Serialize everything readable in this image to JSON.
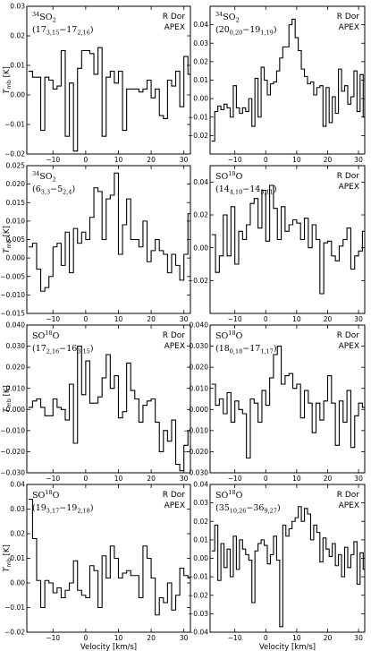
{
  "chart_data": [
    {
      "type": "line",
      "step": true,
      "panel": 1,
      "molecule": {
        "sup": "34",
        "main": "SO",
        "sub": "2"
      },
      "transition": {
        "open": "(",
        "a": "17",
        "asub": "3,15",
        "dash": "−",
        "b": "17",
        "bsub": "2,16",
        "close": ")"
      },
      "source": "R Dor",
      "telescope": "APEX",
      "ylabel": "T",
      "ylabel_sub": "mb",
      "ylabel_unit": " [K]",
      "xlabel": "",
      "xlim": [
        -18,
        32
      ],
      "ylim": [
        -0.02,
        0.03
      ],
      "yticks": [
        -0.02,
        -0.01,
        0.0,
        0.01,
        0.02,
        0.03
      ],
      "xticks": [
        -10,
        0,
        10,
        20,
        30
      ],
      "x_start": -17.5,
      "bin_width": 1.25,
      "values": [
        0.008,
        0.006,
        0.006,
        -0.012,
        0.006,
        0.005,
        0.002,
        0.003,
        0.015,
        -0.014,
        0.004,
        -0.019,
        0.009,
        0.015,
        0.015,
        0.014,
        0.007,
        0.016,
        -0.014,
        0.006,
        0.008,
        0.004,
        0.008,
        -0.012,
        0.002,
        0.002,
        0.002,
        0.001,
        0.002,
        0.005,
        -0.001,
        0.002,
        -0.007,
        -0.008,
        0.005,
        0.003,
        0.008,
        -0.004,
        0.013,
        0.007
      ]
    },
    {
      "type": "line",
      "step": true,
      "panel": 2,
      "molecule": {
        "sup": "34",
        "main": "SO",
        "sub": "2"
      },
      "transition": {
        "open": "(",
        "a": "20",
        "asub": "0,20",
        "dash": "−",
        "b": "19",
        "bsub": "1,19",
        "close": ")"
      },
      "source": "R Dor",
      "telescope": "APEX",
      "ylabel": "",
      "ylabel_sub": "",
      "ylabel_unit": "",
      "xlabel": "",
      "xlim": [
        -18,
        32
      ],
      "ylim": [
        -0.03,
        0.05
      ],
      "yticks": [
        -0.02,
        -0.01,
        0.0,
        0.01,
        0.02,
        0.03,
        0.04
      ],
      "xticks": [
        -10,
        0,
        10,
        20,
        30
      ],
      "x_start": -17.5,
      "bin_width": 1.0,
      "values": [
        -0.023,
        -0.007,
        -0.004,
        -0.006,
        -0.003,
        -0.005,
        -0.01,
        0.007,
        -0.005,
        -0.008,
        -0.005,
        -0.007,
        0.0,
        -0.015,
        0.011,
        -0.01,
        0.017,
        0.01,
        0.002,
        0.008,
        0.009,
        0.015,
        0.022,
        0.028,
        0.028,
        0.04,
        0.043,
        0.033,
        0.026,
        0.016,
        0.012,
        0.008,
        0.009,
        0.002,
        0.006,
        0.007,
        -0.015,
        0.006,
        -0.013,
        0.001,
        -0.008,
        0.016,
        0.004,
        0.007,
        -0.003,
        0.001,
        0.015,
        -0.007,
        0.013,
        -0.01
      ]
    },
    {
      "type": "line",
      "step": true,
      "panel": 3,
      "molecule": {
        "sup": "34",
        "main": "SO",
        "sub": "2"
      },
      "transition": {
        "open": "(",
        "a": "6",
        "asub": "3,3",
        "dash": "−",
        "b": "5",
        "bsub": "2,4",
        "close": ")"
      },
      "source": "",
      "telescope": "",
      "ylabel": "T",
      "ylabel_sub": "mb",
      "ylabel_unit": " [K]",
      "xlabel": "",
      "xlim": [
        -18,
        32
      ],
      "ylim": [
        -0.015,
        0.025
      ],
      "yticks": [
        -0.015,
        -0.01,
        -0.005,
        0.0,
        0.005,
        0.01,
        0.015,
        0.02,
        0.025
      ],
      "xticks": [
        -10,
        0,
        10,
        20,
        30
      ],
      "x_start": -17.5,
      "bin_width": 1.25,
      "values": [
        0.003,
        0.004,
        -0.003,
        -0.009,
        -0.008,
        -0.005,
        0.003,
        0.004,
        -0.002,
        0.007,
        -0.004,
        0.008,
        0.004,
        0.007,
        0.005,
        0.011,
        0.019,
        0.018,
        0.005,
        0.016,
        0.017,
        0.023,
        0.001,
        0.009,
        0.016,
        0.005,
        0.005,
        0.003,
        0.01,
        -0.001,
        0.002,
        0.005,
        0.002,
        0.001,
        -0.004,
        0.001,
        -0.002,
        -0.006,
        0.001,
        0.012
      ]
    },
    {
      "type": "line",
      "step": true,
      "panel": 4,
      "molecule": {
        "sup": "18",
        "main": "SO",
        "post": "O"
      },
      "transition": {
        "open": "(",
        "a": "14",
        "asub": "4,10",
        "dash": "−",
        "b": "14",
        "bsub": "3,11",
        "close": ")"
      },
      "source": "R Dor",
      "telescope": "APEX",
      "ylabel": "",
      "ylabel_sub": "",
      "ylabel_unit": "",
      "xlabel": "",
      "xlim": [
        -18,
        32
      ],
      "ylim": [
        -0.04,
        0.05
      ],
      "yticks": [
        -0.02,
        0.0,
        0.02,
        0.04
      ],
      "xticks": [
        -10,
        0,
        10,
        20,
        30
      ],
      "x_start": -17.5,
      "bin_width": 1.25,
      "values": [
        0.008,
        -0.015,
        -0.005,
        0.02,
        -0.005,
        0.025,
        -0.01,
        0.01,
        0.005,
        0.014,
        0.027,
        0.03,
        0.012,
        0.035,
        0.004,
        0.038,
        0.024,
        0.005,
        0.025,
        0.01,
        0.014,
        0.017,
        0.015,
        0.005,
        0.018,
        0.0,
        0.014,
        0.005,
        -0.028,
        0.003,
        0.004,
        -0.005,
        -0.008,
        0.001,
        0.005,
        0.012,
        -0.013,
        -0.005,
        -0.002,
        0.01
      ]
    },
    {
      "type": "line",
      "step": true,
      "panel": 5,
      "molecule": {
        "sup": "18",
        "main": "SO",
        "post": "O"
      },
      "transition": {
        "open": "(",
        "a": "17",
        "asub": "2,16",
        "dash": "−",
        "b": "16",
        "bsub": "3,15",
        "close": ")"
      },
      "source": "R Dor",
      "telescope": "APEX",
      "ylabel": "T",
      "ylabel_sub": "mb",
      "ylabel_unit": " [K]",
      "xlabel": "",
      "xlim": [
        -18,
        32
      ],
      "ylim": [
        -0.03,
        0.04
      ],
      "yticks": [
        -0.03,
        -0.02,
        -0.01,
        0.0,
        0.01,
        0.02,
        0.03,
        0.04
      ],
      "xticks": [
        -10,
        0,
        10,
        20,
        30
      ],
      "x_start": -17.5,
      "bin_width": 1.25,
      "values": [
        0.001,
        0.004,
        0.005,
        0.001,
        -0.003,
        -0.003,
        0.005,
        0.001,
        0.0,
        -0.005,
        0.012,
        -0.016,
        0.03,
        0.007,
        0.023,
        0.003,
        0.003,
        0.006,
        0.015,
        0.026,
        0.01,
        0.016,
        -0.004,
        -0.001,
        0.022,
        0.009,
        0.005,
        -0.006,
        0.002,
        0.004,
        0.005,
        -0.006,
        -0.02,
        -0.01,
        -0.015,
        -0.005,
        -0.026,
        -0.029,
        -0.017,
        -0.01
      ]
    },
    {
      "type": "line",
      "step": true,
      "panel": 6,
      "molecule": {
        "sup": "18",
        "main": "SO",
        "post": "O"
      },
      "transition": {
        "open": "(",
        "a": "18",
        "asub": "0,18",
        "dash": "−",
        "b": "17",
        "bsub": "1,17",
        "close": ")"
      },
      "source": "R Dor",
      "telescope": "APEX",
      "ylabel": "",
      "ylabel_sub": "",
      "ylabel_unit": "",
      "xlabel": "",
      "xlim": [
        -18,
        32
      ],
      "ylim": [
        -0.03,
        0.04
      ],
      "yticks": [
        -0.03,
        -0.02,
        -0.01,
        0.0,
        0.01,
        0.02,
        0.03,
        0.04
      ],
      "xticks": [
        -10,
        0,
        10,
        20,
        30
      ],
      "x_start": -17.5,
      "bin_width": 1.25,
      "values": [
        0.012,
        0.002,
        0.005,
        -0.002,
        0.008,
        -0.006,
        0.004,
        0.0,
        -0.002,
        -0.023,
        0.005,
        0.003,
        -0.006,
        0.009,
        0.002,
        0.015,
        0.026,
        0.03,
        0.012,
        0.016,
        0.017,
        0.01,
        0.012,
        -0.004,
        0.009,
        0.003,
        -0.011,
        0.003,
        -0.005,
        0.004,
        0.016,
        0.003,
        -0.017,
        0.004,
        -0.006,
        0.009,
        -0.018,
        -0.003,
        0.003,
        0.001
      ]
    },
    {
      "type": "line",
      "step": true,
      "panel": 7,
      "molecule": {
        "sup": "18",
        "main": "SO",
        "post": "O"
      },
      "transition": {
        "open": "(",
        "a": "19",
        "asub": "3,17",
        "dash": "−",
        "b": "19",
        "bsub": "2,18",
        "close": ")"
      },
      "source": "R Dor",
      "telescope": "APEX",
      "ylabel": "T",
      "ylabel_sub": "mb",
      "ylabel_unit": " [K]",
      "xlabel": "Velocity [km/s]",
      "xlim": [
        -18,
        32
      ],
      "ylim": [
        -0.02,
        0.04
      ],
      "yticks": [
        -0.02,
        -0.01,
        0.0,
        0.01,
        0.02,
        0.03,
        0.04
      ],
      "xticks": [
        -10,
        0,
        10,
        20,
        30
      ],
      "x_start": -17.5,
      "bin_width": 1.25,
      "values": [
        0.034,
        0.018,
        0.001,
        -0.01,
        0.001,
        0.0,
        -0.004,
        -0.002,
        -0.006,
        -0.003,
        0.0,
        0.009,
        -0.003,
        -0.005,
        -0.006,
        0.007,
        0.005,
        -0.01,
        0.011,
        0.002,
        0.015,
        0.01,
        0.002,
        0.004,
        0.005,
        0.003,
        0.003,
        -0.006,
        0.015,
        0.01,
        0.002,
        -0.013,
        -0.006,
        -0.008,
        0.0,
        -0.011,
        -0.005,
        0.006,
        0.003,
        0.002
      ]
    },
    {
      "type": "line",
      "step": true,
      "panel": 8,
      "molecule": {
        "sup": "18",
        "main": "SO",
        "post": "O"
      },
      "transition": {
        "open": "(",
        "a": "35",
        "asub": "10,26",
        "dash": "−",
        "b": "36",
        "bsub": "9,27",
        "close": ")"
      },
      "source": "R Dor",
      "telescope": "APEX",
      "ylabel": "",
      "ylabel_sub": "",
      "ylabel_unit": "",
      "xlabel": "Velocity [km/s]",
      "xlim": [
        -18,
        32
      ],
      "ylim": [
        -0.04,
        0.04
      ],
      "yticks": [
        -0.04,
        -0.03,
        -0.02,
        -0.01,
        0.0,
        0.01,
        0.02,
        0.03,
        0.04
      ],
      "xticks": [
        -10,
        0,
        10,
        20,
        30
      ],
      "x_start": -17.5,
      "bin_width": 1.0,
      "values": [
        0.004,
        0.018,
        -0.012,
        0.008,
        -0.005,
        0.005,
        -0.01,
        0.012,
        -0.006,
        0.01,
        0.005,
        0.002,
        -0.001,
        -0.024,
        0.004,
        0.008,
        0.01,
        0.007,
        -0.003,
        0.002,
        0.012,
        -0.001,
        -0.037,
        0.018,
        0.012,
        0.016,
        0.02,
        0.022,
        0.028,
        0.02,
        0.027,
        0.024,
        0.01,
        0.018,
        0.014,
        -0.002,
        0.011,
        0.005,
        0.001,
        0.008,
        -0.004,
        0.002,
        -0.01,
        0.006,
        -0.005,
        0.002,
        0.009,
        -0.014,
        0.003,
        -0.006
      ]
    }
  ]
}
